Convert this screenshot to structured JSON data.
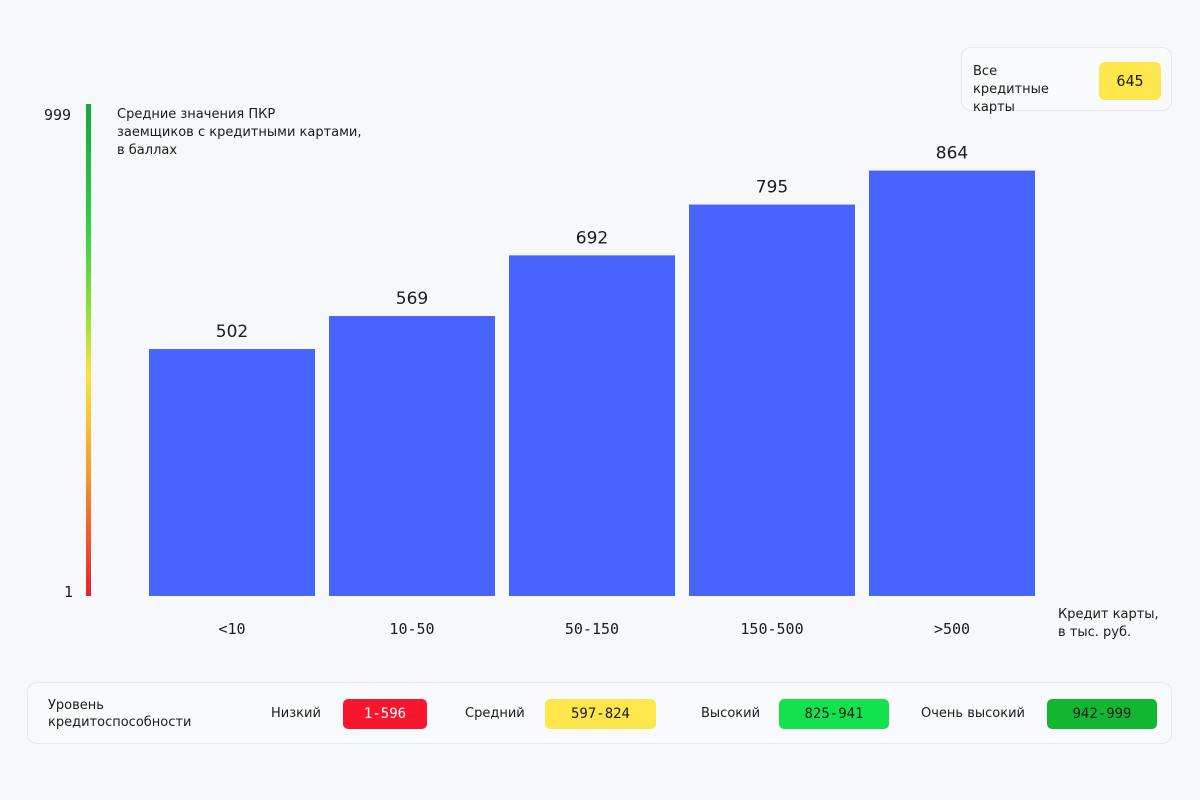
{
  "chart_data": {
    "type": "bar",
    "title": "Средние значения ПКР\nзаемщиков с кредитными картами,\nв баллах",
    "xlabel": "Кредит карты,\nв тыс. руб.",
    "ylabel": "",
    "categories": [
      "<10",
      "10-50",
      "50-150",
      "150-500",
      ">500"
    ],
    "values": [
      502,
      569,
      692,
      795,
      864
    ],
    "ylim": [
      1,
      999
    ],
    "scale_labels": {
      "max": "999",
      "min": "1"
    },
    "bar_color": "#4864ff",
    "grid": false
  },
  "summary": {
    "label": "Все\nкредитные\nкарты",
    "value": "645",
    "color": "#fde74c"
  },
  "legend": {
    "title": "Уровень\nкредитоспособности",
    "items": [
      {
        "name": "Низкий",
        "range": "1-596",
        "color": "#f8162d",
        "text_color": "#ffffff"
      },
      {
        "name": "Средний",
        "range": "597-824",
        "color": "#fde74c",
        "text_color": "#1b1b1b"
      },
      {
        "name": "Высокий",
        "range": "825-941",
        "color": "#14e24d",
        "text_color": "#1b1b1b"
      },
      {
        "name": "Очень высокий",
        "range": "942-999",
        "color": "#13b631",
        "text_color": "#1b1b1b"
      }
    ]
  }
}
